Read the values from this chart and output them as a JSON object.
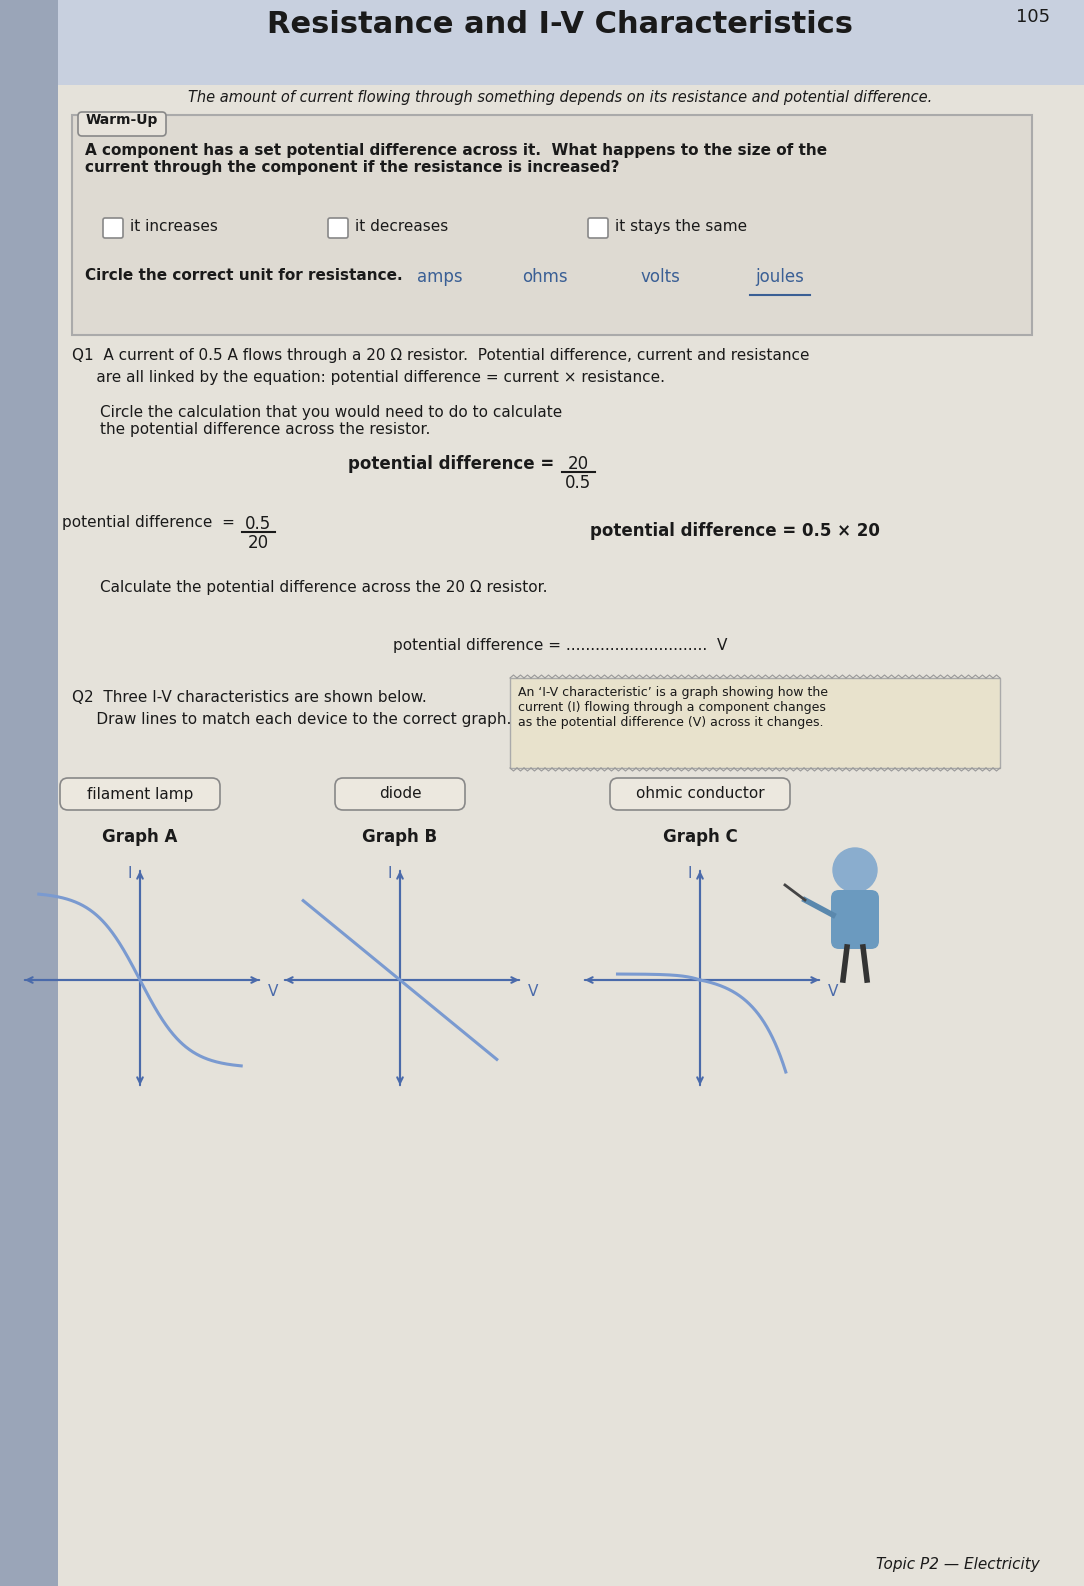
{
  "title": "Resistance and I-V Characteristics",
  "page_num": "105",
  "subtitle": "The amount of current flowing through something depends on its resistance and potential difference.",
  "warmup_label": "Warm-Up",
  "warmup_question": "A component has a set potential difference across it.  What happens to the size of the\ncurrent through the component if the resistance is increased?",
  "warmup_options": [
    "it increases",
    "it decreases",
    "it stays the same"
  ],
  "circle_line": "Circle the correct unit for resistance.",
  "units": [
    "amps",
    "ohms",
    "volts",
    "joules"
  ],
  "q1_intro": "Q1  A current of 0.5 A flows through a 20 Ω resistor.  Potential difference, current and resistance",
  "q1_intro2": "     are all linked by the equation: potential difference = current × resistance.",
  "circle_calc": "Circle the calculation that you would need to do to calculate\nthe potential difference across the resistor.",
  "calc3": "potential difference = 0.5 × 20",
  "calc_answer_line": "Calculate the potential difference across the 20 Ω resistor.",
  "answer_line": "potential difference = .............................  V",
  "q2_line1": "Q2  Three I-V characteristics are shown below.",
  "q2_line2": "     Draw lines to match each device to the correct graph.",
  "iv_note": "An ‘I-V characteristic’ is a graph showing how the\ncurrent (I) flowing through a component changes\nas the potential difference (V) across it changes.",
  "devices": [
    "filament lamp",
    "diode",
    "ohmic conductor"
  ],
  "graph_labels": [
    "Graph A",
    "Graph B",
    "Graph C"
  ],
  "footer": "Topic P2 — Electricity",
  "bg_color": "#cccac2",
  "page_bg": "#e5e2da",
  "warmup_bg": "#dedad2",
  "header_bg": "#c8d0df",
  "text_color": "#1a1a1a",
  "dark_text": "#222222",
  "blue_color": "#3a5f95",
  "axis_color": "#4a6aaa",
  "curve_color": "#7a9ad0",
  "note_bg": "#e8e2cc"
}
